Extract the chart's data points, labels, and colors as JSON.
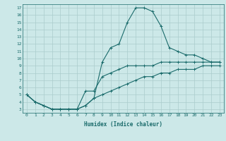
{
  "title": "",
  "xlabel": "Humidex (Indice chaleur)",
  "background_color": "#cce8e8",
  "grid_color": "#aacccc",
  "line_color": "#1a6b6b",
  "xlim": [
    -0.5,
    23.5
  ],
  "ylim": [
    2.5,
    17.5
  ],
  "xticks": [
    0,
    1,
    2,
    3,
    4,
    5,
    6,
    7,
    8,
    9,
    10,
    11,
    12,
    13,
    14,
    15,
    16,
    17,
    18,
    19,
    20,
    21,
    22,
    23
  ],
  "yticks": [
    3,
    4,
    5,
    6,
    7,
    8,
    9,
    10,
    11,
    12,
    13,
    14,
    15,
    16,
    17
  ],
  "lines": [
    {
      "x": [
        0,
        1,
        2,
        3,
        4,
        5,
        6,
        7,
        8,
        9,
        10,
        11,
        12,
        13,
        14,
        15,
        16,
        17,
        18,
        19,
        20,
        21,
        22,
        23
      ],
      "y": [
        5,
        4,
        3.5,
        3,
        3,
        3,
        3,
        3.5,
        4.5,
        9.5,
        11.5,
        12,
        15,
        17,
        17,
        16.5,
        14.5,
        11.5,
        11,
        10.5,
        10.5,
        10,
        9.5,
        9.5
      ]
    },
    {
      "x": [
        0,
        1,
        2,
        3,
        4,
        5,
        6,
        7,
        8,
        9,
        10,
        11,
        12,
        13,
        14,
        15,
        16,
        17,
        18,
        19,
        20,
        21,
        22,
        23
      ],
      "y": [
        5,
        4,
        3.5,
        3,
        3,
        3,
        3,
        5.5,
        5.5,
        7.5,
        8,
        8.5,
        9,
        9,
        9,
        9,
        9.5,
        9.5,
        9.5,
        9.5,
        9.5,
        9.5,
        9.5,
        9.5
      ]
    },
    {
      "x": [
        0,
        1,
        2,
        3,
        4,
        5,
        6,
        7,
        8,
        9,
        10,
        11,
        12,
        13,
        14,
        15,
        16,
        17,
        18,
        19,
        20,
        21,
        22,
        23
      ],
      "y": [
        5,
        4,
        3.5,
        3,
        3,
        3,
        3,
        3.5,
        4.5,
        5,
        5.5,
        6,
        6.5,
        7,
        7.5,
        7.5,
        8,
        8,
        8.5,
        8.5,
        8.5,
        9,
        9,
        9
      ]
    }
  ]
}
